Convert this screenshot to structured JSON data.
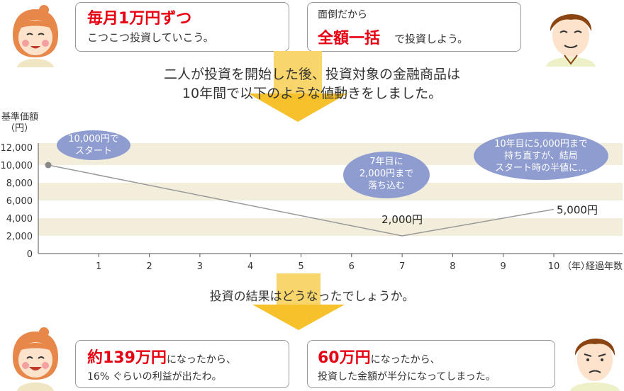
{
  "top": {
    "left_bubble": {
      "highlight": "毎月1万円ずつ",
      "text": "こつこつ投資していこう。"
    },
    "right_bubble": {
      "line1": "面倒だから",
      "highlight": "全額一括",
      "text": "で投資しよう。"
    }
  },
  "intro": {
    "line1": "二人が投資を開始した後、投資対象の金融商品は",
    "line2": "10年間で以下のような値動きをしました。"
  },
  "question": "投資の結果はどうなったでしょうか。",
  "bottom": {
    "left_bubble": {
      "highlight": "約139万円",
      "text1": "になったから、",
      "text2": "16% ぐらいの利益が出たわ。"
    },
    "right_bubble": {
      "highlight": "60万円",
      "text1": "になったから、",
      "text2": "投資した金額が半分になってしまった。"
    }
  },
  "chart_data": {
    "type": "line",
    "ylabel": "基準価額",
    "yunit": "（円）",
    "xlabel": "経過年数",
    "x_unit": "（年）",
    "ylim": [
      0,
      12000
    ],
    "xlim": [
      0,
      10
    ],
    "yticks": [
      "12,000",
      "10,000",
      "8,000",
      "6,000",
      "4,000",
      "2,000",
      "0"
    ],
    "xticks": [
      "1",
      "2",
      "3",
      "4",
      "5",
      "6",
      "7",
      "8",
      "9",
      "10"
    ],
    "series": [
      {
        "x": [
          0,
          7,
          10
        ],
        "y": [
          10000,
          2000,
          5000
        ]
      }
    ],
    "annotations": [
      {
        "text": "10,000円で\nスタート"
      },
      {
        "text": "7年目に\n2,000円まで\n落ち込む"
      },
      {
        "text": "10年目に5,000円まで\n持ち直すが、結局\nスタート時の半値に…"
      }
    ],
    "data_labels": [
      "2,000円",
      "5,000円"
    ],
    "grid": "horizontal bands",
    "colors": {
      "line": "#999999",
      "band": "#f3eedc",
      "balloon": "#8e9ccf",
      "highlight": "#e60012",
      "arrow": "#f7c12c"
    }
  }
}
